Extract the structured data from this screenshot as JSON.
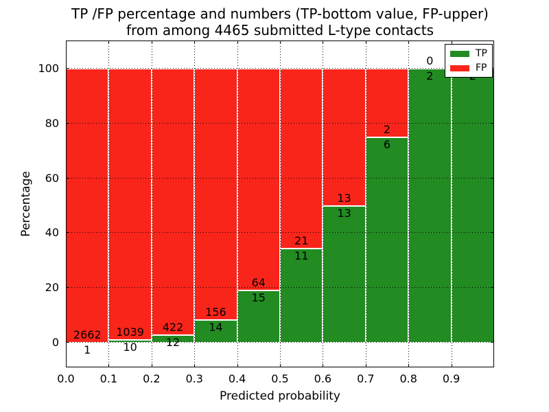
{
  "figure": {
    "title_line1": "TP /FP percentage and numbers (TP-bottom value, FP-upper)",
    "title_line2": "from among 4465 submitted L-type contacts"
  },
  "axes": {
    "xlabel": "Predicted probability",
    "ylabel": "Percentage",
    "x_tick_labels": [
      "0.0",
      "0.1",
      "0.2",
      "0.3",
      "0.4",
      "0.5",
      "0.6",
      "0.7",
      "0.8",
      "0.9"
    ],
    "x_tick_values": [
      0.0,
      0.1,
      0.2,
      0.3,
      0.4,
      0.5,
      0.6,
      0.7,
      0.8,
      0.9
    ],
    "y_tick_labels": [
      "0",
      "20",
      "40",
      "60",
      "80",
      "100"
    ],
    "y_tick_values": [
      0,
      20,
      40,
      60,
      80,
      100
    ],
    "xlim": [
      0.0,
      1.0
    ],
    "ylim": [
      -9,
      110
    ],
    "grid_style": "dotted"
  },
  "legend": {
    "position": "upper-right",
    "items": [
      {
        "label": "TP",
        "color": "#228b22"
      },
      {
        "label": "FP",
        "color": "#f9251b"
      }
    ]
  },
  "chart_data": {
    "type": "bar",
    "stacked": true,
    "title": "TP /FP percentage and numbers (TP-bottom value, FP-upper) from among 4465 submitted L-type contacts",
    "xlabel": "Predicted probability",
    "ylabel": "Percentage",
    "total_contacts": 4465,
    "bin_edges": [
      0.0,
      0.1,
      0.2,
      0.3,
      0.4,
      0.5,
      0.6,
      0.7,
      0.8,
      0.9,
      1.0
    ],
    "series": [
      {
        "name": "TP",
        "position": "bottom",
        "color": "#228b22",
        "counts": [
          1,
          10,
          12,
          14,
          15,
          11,
          13,
          6,
          2,
          2
        ],
        "pct": [
          0.04,
          0.95,
          2.76,
          8.24,
          18.99,
          34.38,
          50.0,
          75.0,
          100.0,
          100.0
        ]
      },
      {
        "name": "FP",
        "position": "top",
        "color": "#f9251b",
        "counts": [
          2662,
          1039,
          422,
          156,
          64,
          21,
          13,
          2,
          0,
          0
        ],
        "pct": [
          99.96,
          99.05,
          97.24,
          91.76,
          81.01,
          65.62,
          50.0,
          25.0,
          0.0,
          0.0
        ]
      }
    ],
    "fp_label_visible": [
      true,
      true,
      true,
      true,
      true,
      true,
      true,
      true,
      true,
      false
    ],
    "legend_position": "upper-right",
    "grid": true
  },
  "colors": {
    "tp": "#228b22",
    "fp": "#f9251b",
    "background": "#ffffff",
    "grid": "#000000",
    "bar_edge": "#ffffff",
    "text": "#000000"
  }
}
